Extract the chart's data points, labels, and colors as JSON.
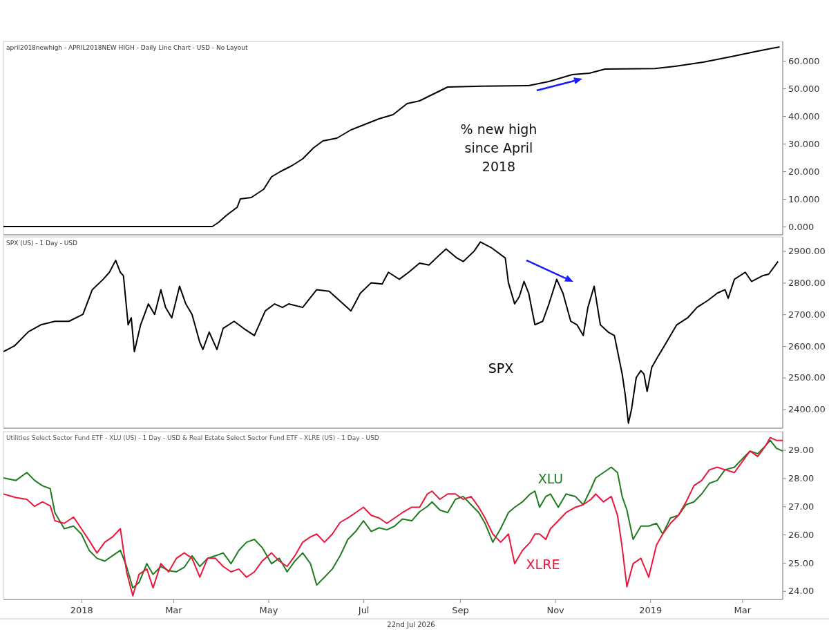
{
  "chart_data": [
    {
      "type": "line",
      "title": "april2018newhigh - APRIL2018NEW HIGH - Daily Line Chart - USD - No Layout",
      "annotations": [
        "% new high since April 2018"
      ],
      "xlim": [
        "2017-11-12",
        "2019-03-27"
      ],
      "ylim": [
        -3,
        67
      ],
      "yticks": [
        {
          "value": 0,
          "label": "0.000"
        },
        {
          "value": 10,
          "label": "10.000"
        },
        {
          "value": 20,
          "label": "20.000"
        },
        {
          "value": 30,
          "label": "30.000"
        },
        {
          "value": 40,
          "label": "40.000"
        },
        {
          "value": 50,
          "label": "50.000"
        },
        {
          "value": 60,
          "label": "60.000"
        }
      ],
      "tick_labels": "y",
      "grid": false,
      "legend": false,
      "series": [
        {
          "color": "#000000",
          "x": [
            "2017-11-12",
            "2018-03-26",
            "2018-03-30",
            "2018-04-04",
            "2018-04-11",
            "2018-04-13",
            "2018-04-20",
            "2018-04-24",
            "2018-04-28",
            "2018-05-03",
            "2018-05-09",
            "2018-05-16",
            "2018-05-23",
            "2018-05-30",
            "2018-06-05",
            "2018-06-14",
            "2018-06-23",
            "2018-07-02",
            "2018-07-11",
            "2018-07-20",
            "2018-07-29",
            "2018-08-06",
            "2018-08-15",
            "2018-08-24",
            "2018-09-15",
            "2018-10-15",
            "2018-10-28",
            "2018-11-12",
            "2018-11-23",
            "2018-12-03",
            "2019-01-04",
            "2019-01-17",
            "2019-02-04",
            "2019-02-22",
            "2019-03-11",
            "2019-03-20",
            "2019-03-25"
          ],
          "values": [
            0,
            0,
            1.5,
            4,
            7,
            10,
            10.5,
            12,
            13.5,
            18,
            20,
            22,
            24.5,
            28.5,
            31,
            32,
            35,
            37,
            39,
            40.5,
            44.5,
            45.5,
            48,
            50.5,
            50.8,
            51,
            52.5,
            55,
            55.5,
            57,
            57.2,
            58,
            59.5,
            61.5,
            63.5,
            64.5,
            65
          ]
        }
      ]
    },
    {
      "type": "line",
      "title": "SPX (US) - 1 Day - USD",
      "xlim": [
        "2017-11-12",
        "2019-03-27"
      ],
      "ylim": [
        2340,
        2945
      ],
      "yticks": [
        {
          "value": 2400,
          "label": "2400.00"
        },
        {
          "value": 2500,
          "label": "2500.00"
        },
        {
          "value": 2600,
          "label": "2600.00"
        },
        {
          "value": 2700,
          "label": "2700.00"
        },
        {
          "value": 2800,
          "label": "2800.00"
        },
        {
          "value": 2900,
          "label": "2900.00"
        }
      ],
      "tick_labels": "y",
      "grid": false,
      "legend": false,
      "series": [
        {
          "name": "SPX",
          "color": "#000000",
          "x": [
            "2017-11-12",
            "2017-11-19",
            "2017-11-28",
            "2017-12-06",
            "2017-12-15",
            "2017-12-24",
            "2018-01-02",
            "2018-01-08",
            "2018-01-15",
            "2018-01-19",
            "2018-01-23",
            "2018-01-26",
            "2018-01-28",
            "2018-01-31",
            "2018-02-02",
            "2018-02-04",
            "2018-02-08",
            "2018-02-13",
            "2018-02-17",
            "2018-02-21",
            "2018-02-24",
            "2018-02-28",
            "2018-03-05",
            "2018-03-09",
            "2018-03-13",
            "2018-03-18",
            "2018-03-20",
            "2018-03-24",
            "2018-03-29",
            "2018-04-02",
            "2018-04-09",
            "2018-04-15",
            "2018-04-22",
            "2018-04-29",
            "2018-05-05",
            "2018-05-10",
            "2018-05-14",
            "2018-05-23",
            "2018-06-01",
            "2018-06-09",
            "2018-06-18",
            "2018-06-23",
            "2018-06-29",
            "2018-07-06",
            "2018-07-13",
            "2018-07-17",
            "2018-07-24",
            "2018-07-30",
            "2018-08-06",
            "2018-08-12",
            "2018-08-19",
            "2018-08-23",
            "2018-08-30",
            "2018-09-03",
            "2018-09-10",
            "2018-09-14",
            "2018-09-21",
            "2018-09-30",
            "2018-10-02",
            "2018-10-06",
            "2018-10-09",
            "2018-10-12",
            "2018-10-15",
            "2018-10-19",
            "2018-10-24",
            "2018-10-28",
            "2018-11-02",
            "2018-11-06",
            "2018-11-11",
            "2018-11-15",
            "2018-11-19",
            "2018-11-22",
            "2018-11-26",
            "2018-11-30",
            "2018-12-05",
            "2018-12-09",
            "2018-12-14",
            "2018-12-16",
            "2018-12-18",
            "2018-12-20",
            "2018-12-23",
            "2018-12-26",
            "2018-12-28",
            "2018-12-30",
            "2019-01-02",
            "2019-01-06",
            "2019-01-10",
            "2019-01-18",
            "2019-01-25",
            "2019-01-31",
            "2019-02-07",
            "2019-02-13",
            "2019-02-18",
            "2019-02-20",
            "2019-02-24",
            "2019-03-03",
            "2019-03-07",
            "2019-03-14",
            "2019-03-18",
            "2019-03-24"
          ],
          "values": [
            2582,
            2600,
            2645,
            2667,
            2678,
            2678,
            2700,
            2778,
            2811,
            2833,
            2871,
            2833,
            2822,
            2667,
            2689,
            2582,
            2667,
            2733,
            2700,
            2778,
            2722,
            2689,
            2789,
            2733,
            2700,
            2611,
            2589,
            2644,
            2589,
            2656,
            2678,
            2656,
            2633,
            2711,
            2733,
            2722,
            2733,
            2722,
            2778,
            2773,
            2733,
            2711,
            2767,
            2800,
            2796,
            2833,
            2811,
            2833,
            2862,
            2856,
            2889,
            2907,
            2878,
            2867,
            2900,
            2929,
            2911,
            2878,
            2800,
            2733,
            2756,
            2804,
            2767,
            2667,
            2678,
            2733,
            2811,
            2767,
            2678,
            2667,
            2633,
            2722,
            2789,
            2667,
            2644,
            2633,
            2511,
            2444,
            2356,
            2400,
            2500,
            2522,
            2511,
            2456,
            2533,
            2567,
            2600,
            2667,
            2689,
            2722,
            2744,
            2767,
            2778,
            2751,
            2811,
            2833,
            2804,
            2822,
            2827,
            2867
          ]
        }
      ]
    },
    {
      "type": "line",
      "title": "Utilities Select Sector Fund ETF - XLU (US) - 1 Day - USD & Real Estate Select Sector Fund ETF - XLRE (US) - 1 Day - USD",
      "annotations": [
        "22nd Jul 2026"
      ],
      "xlim": [
        "2017-11-12",
        "2019-03-27"
      ],
      "ylim": [
        23.7,
        29.65
      ],
      "yticks": [
        {
          "value": 24,
          "label": "24.00"
        },
        {
          "value": 25,
          "label": "25.00"
        },
        {
          "value": 26,
          "label": "26.00"
        },
        {
          "value": 27,
          "label": "27.00"
        },
        {
          "value": 28,
          "label": "28.00"
        },
        {
          "value": 29,
          "label": "29.00"
        }
      ],
      "xticks": [
        {
          "value": "2018-01-01",
          "label": "2018"
        },
        {
          "value": "2018-03-01",
          "label": "Mar"
        },
        {
          "value": "2018-05-01",
          "label": "May"
        },
        {
          "value": "2018-07-01",
          "label": "Jul"
        },
        {
          "value": "2018-09-01",
          "label": "Sep"
        },
        {
          "value": "2018-11-01",
          "label": "Nov"
        },
        {
          "value": "2019-01-01",
          "label": "2019"
        },
        {
          "value": "2019-03-01",
          "label": "Mar"
        }
      ],
      "grid": false,
      "legend": false,
      "x": [
        "2017-11-12",
        "2017-11-20",
        "2017-11-27",
        "2017-12-02",
        "2017-12-07",
        "2017-12-12",
        "2017-12-15",
        "2017-12-21",
        "2017-12-27",
        "2018-01-01",
        "2018-01-06",
        "2018-01-11",
        "2018-01-16",
        "2018-01-21",
        "2018-01-26",
        "2018-01-30",
        "2018-02-03",
        "2018-02-07",
        "2018-02-12",
        "2018-02-16",
        "2018-02-21",
        "2018-02-26",
        "2018-03-03",
        "2018-03-08",
        "2018-03-13",
        "2018-03-18",
        "2018-03-23",
        "2018-03-28",
        "2018-04-02",
        "2018-04-07",
        "2018-04-12",
        "2018-04-17",
        "2018-04-22",
        "2018-04-27",
        "2018-05-03",
        "2018-05-08",
        "2018-05-13",
        "2018-05-18",
        "2018-05-23",
        "2018-05-28",
        "2018-06-01",
        "2018-06-06",
        "2018-06-11",
        "2018-06-16",
        "2018-06-21",
        "2018-06-26",
        "2018-07-01",
        "2018-07-06",
        "2018-07-11",
        "2018-07-16",
        "2018-07-21",
        "2018-07-26",
        "2018-08-01",
        "2018-08-06",
        "2018-08-11",
        "2018-08-14",
        "2018-08-19",
        "2018-08-24",
        "2018-08-29",
        "2018-09-03",
        "2018-09-08",
        "2018-09-13",
        "2018-09-17",
        "2018-09-22",
        "2018-09-27",
        "2018-10-02",
        "2018-10-06",
        "2018-10-11",
        "2018-10-16",
        "2018-10-19",
        "2018-10-22",
        "2018-10-26",
        "2018-10-29",
        "2018-11-03",
        "2018-11-08",
        "2018-11-14",
        "2018-11-19",
        "2018-11-24",
        "2018-11-27",
        "2018-12-02",
        "2018-12-07",
        "2018-12-11",
        "2018-12-14",
        "2018-12-17",
        "2018-12-21",
        "2018-12-26",
        "2018-12-31",
        "2019-01-05",
        "2019-01-09",
        "2019-01-14",
        "2019-01-19",
        "2019-01-24",
        "2019-01-29",
        "2019-02-03",
        "2019-02-08",
        "2019-02-13",
        "2019-02-18",
        "2019-02-24",
        "2019-03-01",
        "2019-03-06",
        "2019-03-11",
        "2019-03-16",
        "2019-03-19",
        "2019-03-23",
        "2019-03-27"
      ],
      "series": [
        {
          "name": "XLU",
          "color": "#1e7b1e",
          "values": [
            28.01,
            27.92,
            28.2,
            27.92,
            27.73,
            27.63,
            26.78,
            26.21,
            26.3,
            26.02,
            25.44,
            25.16,
            25.06,
            25.25,
            25.44,
            24.87,
            24.11,
            24.3,
            24.97,
            24.59,
            24.87,
            24.72,
            24.68,
            24.84,
            25.25,
            24.87,
            25.16,
            25.25,
            25.35,
            24.97,
            25.44,
            25.73,
            25.83,
            25.54,
            24.97,
            25.16,
            24.68,
            25.06,
            25.35,
            24.97,
            24.21,
            24.49,
            24.78,
            25.25,
            25.83,
            26.11,
            26.49,
            26.11,
            26.24,
            26.17,
            26.3,
            26.55,
            26.49,
            26.81,
            27.0,
            27.16,
            26.87,
            26.78,
            27.25,
            27.35,
            27.06,
            26.78,
            26.4,
            25.73,
            26.21,
            26.78,
            26.97,
            27.16,
            27.44,
            27.54,
            26.97,
            27.35,
            27.44,
            26.97,
            27.44,
            27.35,
            27.06,
            27.63,
            28.01,
            28.2,
            28.39,
            28.2,
            27.35,
            26.87,
            25.83,
            26.3,
            26.3,
            26.4,
            26.02,
            26.59,
            26.68,
            27.06,
            27.16,
            27.44,
            27.82,
            27.92,
            28.3,
            28.39,
            28.68,
            28.96,
            28.87,
            29.15,
            29.34,
            29.06,
            28.96
          ]
        },
        {
          "name": "XLRE",
          "color": "#e8173c",
          "values": [
            27.44,
            27.31,
            27.25,
            27.0,
            27.16,
            27.02,
            26.49,
            26.4,
            26.62,
            26.21,
            25.79,
            25.35,
            25.73,
            25.92,
            26.21,
            24.68,
            23.83,
            24.59,
            24.78,
            24.11,
            24.97,
            24.68,
            25.16,
            25.35,
            25.16,
            24.49,
            25.16,
            25.16,
            24.87,
            24.68,
            24.78,
            24.49,
            24.68,
            25.06,
            25.35,
            25.06,
            24.87,
            25.25,
            25.73,
            25.92,
            26.02,
            25.73,
            26.02,
            26.43,
            26.59,
            26.78,
            26.97,
            26.68,
            26.59,
            26.4,
            26.59,
            26.78,
            26.97,
            26.97,
            27.44,
            27.54,
            27.25,
            27.44,
            27.44,
            27.25,
            27.35,
            26.97,
            26.59,
            26.02,
            25.73,
            26.02,
            24.97,
            25.44,
            25.73,
            26.02,
            26.02,
            25.83,
            26.21,
            26.49,
            26.78,
            26.97,
            27.06,
            27.25,
            27.44,
            27.16,
            27.35,
            26.68,
            25.54,
            24.15,
            24.97,
            25.16,
            24.49,
            25.63,
            26.02,
            26.4,
            26.68,
            27.16,
            27.73,
            27.92,
            28.3,
            28.39,
            28.3,
            28.2,
            28.58,
            28.96,
            28.77,
            29.15,
            29.44,
            29.34,
            29.34
          ]
        }
      ]
    }
  ]
}
